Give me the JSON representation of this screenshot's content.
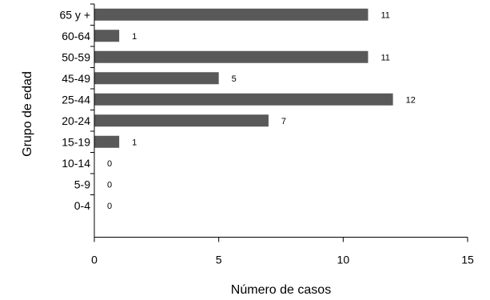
{
  "chart_data": {
    "type": "bar",
    "orientation": "horizontal",
    "categories": [
      "65 y +",
      "60-64",
      "50-59",
      "45-49",
      "25-44",
      "20-24",
      "15-19",
      "10-14",
      "5-9",
      "0-4"
    ],
    "values": [
      11,
      1,
      11,
      5,
      12,
      7,
      1,
      0,
      0,
      0
    ],
    "xlabel": "Número de casos",
    "ylabel": "Grupo de edad",
    "xlim": [
      0,
      15
    ],
    "xticks": [
      0,
      5,
      10,
      15
    ],
    "grid": false,
    "legend": "none",
    "bar_color": "#595959"
  }
}
